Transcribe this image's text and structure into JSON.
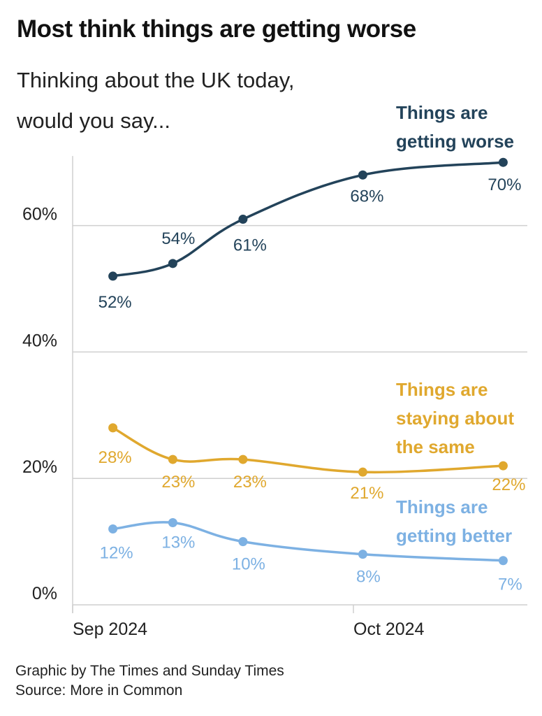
{
  "title": "Most think things are getting worse",
  "subtitle_lines": [
    "Thinking about the UK today,",
    "would you say..."
  ],
  "footer": {
    "credit": "Graphic by The Times and Sunday Times",
    "source": "Source: More in Common"
  },
  "chart_data": {
    "type": "line",
    "title": "Most think things are getting worse",
    "subtitle": "Thinking about the UK today, would you say...",
    "xlabel": "",
    "ylabel": "",
    "x_unit": "days since 1 Sep 2024 (estimated from position)",
    "x": [
      4.3,
      10.7,
      18.2,
      31.0,
      46.0
    ],
    "xlim": [
      0,
      48
    ],
    "x_ticks": [
      {
        "value": 0,
        "label": "Sep 2024"
      },
      {
        "value": 30,
        "label": "Oct 2024"
      }
    ],
    "ylim": [
      0,
      71
    ],
    "y_ticks": [
      {
        "value": 0,
        "label": "0%"
      },
      {
        "value": 20,
        "label": "20%"
      },
      {
        "value": 40,
        "label": "40%"
      },
      {
        "value": 60,
        "label": "60%"
      }
    ],
    "grid": true,
    "legend": "direct labels at right",
    "series": [
      {
        "name": "Things are getting worse",
        "label_lines": [
          "Things are",
          "getting worse"
        ],
        "color": "#23435a",
        "values": [
          52,
          54,
          61,
          68,
          70
        ],
        "labels": [
          "52%",
          "54%",
          "61%",
          "68%",
          "70%"
        ]
      },
      {
        "name": "Things are staying about the same",
        "label_lines": [
          "Things are",
          "staying about",
          "the same"
        ],
        "color": "#e0a82e",
        "values": [
          28,
          23,
          23,
          21,
          22
        ],
        "labels": [
          "28%",
          "23%",
          "23%",
          "21%",
          "22%"
        ]
      },
      {
        "name": "Things are getting better",
        "label_lines": [
          "Things are",
          "getting better"
        ],
        "color": "#7db1e3",
        "values": [
          12,
          13,
          10,
          8,
          7
        ],
        "labels": [
          "12%",
          "13%",
          "10%",
          "8%",
          "7%"
        ]
      }
    ]
  }
}
